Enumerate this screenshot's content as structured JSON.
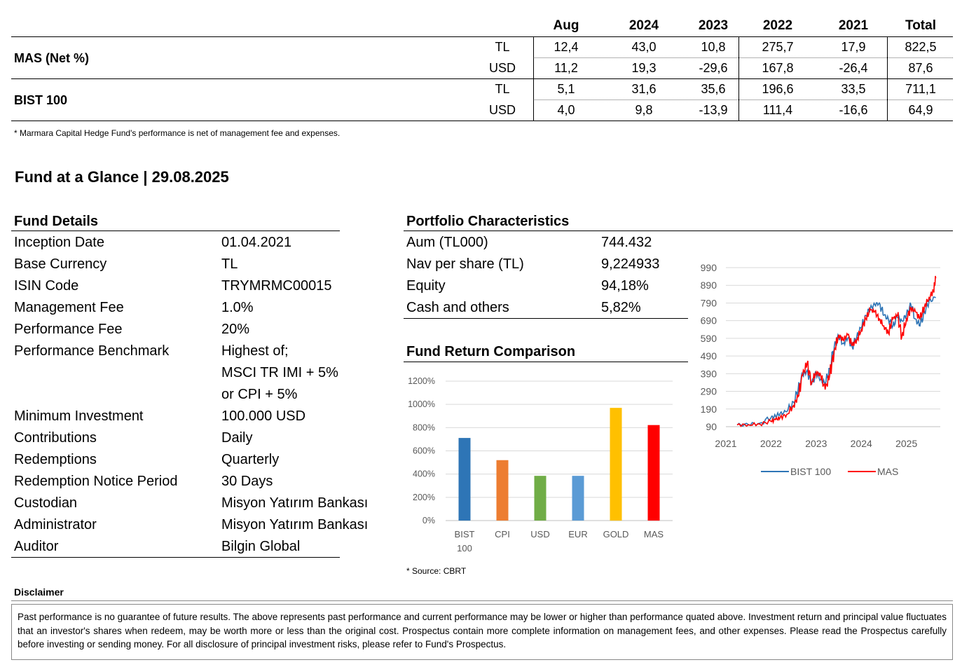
{
  "perf_table": {
    "headers": [
      "Aug",
      "2024",
      "2023",
      "2022",
      "2021",
      "Total"
    ],
    "rows": [
      {
        "name": "MAS (Net %)",
        "lines": [
          {
            "currency": "TL",
            "values": [
              "12,4",
              "43,0",
              "10,8",
              "275,7",
              "17,9",
              "822,5"
            ]
          },
          {
            "currency": "USD",
            "values": [
              "11,2",
              "19,3",
              "-29,6",
              "167,8",
              "-26,4",
              "87,6"
            ]
          }
        ]
      },
      {
        "name": "BIST 100",
        "lines": [
          {
            "currency": "TL",
            "values": [
              "5,1",
              "31,6",
              "35,6",
              "196,6",
              "33,5",
              "711,1"
            ]
          },
          {
            "currency": "USD",
            "values": [
              "4,0",
              "9,8",
              "-13,9",
              "111,4",
              "-16,6",
              "64,9"
            ]
          }
        ]
      }
    ],
    "footnote": "* Marmara Capital Hedge Fund's performance is net of management fee and expenses."
  },
  "glance_title": "Fund at a Glance |  29.08.2025",
  "fund_details": {
    "title": "Fund Details",
    "items": [
      {
        "label": "Inception Date",
        "value": "01.04.2021"
      },
      {
        "label": "Base Currency",
        "value": "TL"
      },
      {
        "label": "ISIN Code",
        "value": "TRYMRMC00015"
      },
      {
        "label": "Management Fee",
        "value": "1.0%"
      },
      {
        "label": "Performance Fee",
        "value": "20%"
      },
      {
        "label": "Performance Benchmark",
        "value": "Highest of;"
      },
      {
        "label": "",
        "value": "MSCI TR IMI + 5%"
      },
      {
        "label": "",
        "value": "or CPI + 5%"
      },
      {
        "label": "Minimum Investment",
        "value": "100.000 USD"
      },
      {
        "label": "Contributions",
        "value": "Daily"
      },
      {
        "label": "Redemptions",
        "value": "Quarterly"
      },
      {
        "label": "Redemption Notice Period",
        "value": "30 Days"
      },
      {
        "label": "Custodian",
        "value": "Misyon Yatırım Bankası"
      },
      {
        "label": "Administrator",
        "value": "Misyon Yatırım Bankası"
      },
      {
        "label": "Auditor",
        "value": "Bilgin Global"
      }
    ]
  },
  "portfolio": {
    "title": "Portfolio Characteristics",
    "items": [
      {
        "label": "Aum (TL000)",
        "value": "744.432"
      },
      {
        "label": "Nav per share (TL)",
        "value": "9,224933"
      },
      {
        "label": "Equity",
        "value": "94,18%"
      },
      {
        "label": "Cash and others",
        "value": "5,82%"
      }
    ]
  },
  "comparison": {
    "title": "Fund Return Comparison",
    "source": "* Source: CBRT"
  },
  "disclaimer": {
    "title": "Disclaimer",
    "text": "Past performance is no guarantee of future results. The above represents past performance and current performance may be lower or higher than performance quated above. Investment return and principal value fluctuates that an investor's shares when redeem, may be worth more or less than the original cost. Prospectus contain  more complete information on management fees, and other expenses. Please read the Prospectus carefully before investing or sending money. For all disclosure of principal investment risks, please refer to Fund's Prospectus."
  },
  "chart_data": [
    {
      "type": "bar",
      "categories": [
        "BIST 100",
        "CPI",
        "USD",
        "EUR",
        "GOLD",
        "MAS"
      ],
      "values": [
        711,
        520,
        385,
        385,
        970,
        822
      ],
      "colors": [
        "#2e75b6",
        "#ed7d31",
        "#70ad47",
        "#5b9bd5",
        "#ffc000",
        "#ff0000"
      ],
      "ytick_labels": [
        "0%",
        "200%",
        "400%",
        "600%",
        "800%",
        "1000%",
        "1200%"
      ],
      "ylim": [
        0,
        1200
      ],
      "grid": true
    },
    {
      "type": "line",
      "x_tick_labels": [
        "2021",
        "2022",
        "2023",
        "2024",
        "2025"
      ],
      "y_tick_labels": [
        "90",
        "190",
        "290",
        "390",
        "490",
        "590",
        "690",
        "790",
        "890",
        "990"
      ],
      "ylim": [
        90,
        990
      ],
      "grid": true,
      "legend": "bottom",
      "series": [
        {
          "name": "BIST 100",
          "color": "#2e75b6",
          "x": [
            2021.25,
            2021.5,
            2021.75,
            2022.0,
            2022.1,
            2022.2,
            2022.35,
            2022.5,
            2022.6,
            2022.7,
            2022.8,
            2022.9,
            2023.0,
            2023.1,
            2023.2,
            2023.3,
            2023.4,
            2023.5,
            2023.6,
            2023.7,
            2023.8,
            2023.9,
            2024.0,
            2024.1,
            2024.2,
            2024.3,
            2024.4,
            2024.5,
            2024.6,
            2024.7,
            2024.8,
            2024.9,
            2025.0,
            2025.1,
            2025.2,
            2025.3,
            2025.4,
            2025.5,
            2025.65
          ],
          "y": [
            100,
            102,
            110,
            140,
            150,
            165,
            175,
            230,
            300,
            380,
            410,
            330,
            390,
            360,
            330,
            420,
            540,
            600,
            560,
            590,
            540,
            600,
            650,
            720,
            760,
            780,
            790,
            720,
            700,
            660,
            710,
            690,
            720,
            780,
            700,
            660,
            740,
            800,
            820
          ]
        },
        {
          "name": "MAS",
          "color": "#ff0000",
          "x": [
            2021.25,
            2021.5,
            2021.75,
            2022.0,
            2022.1,
            2022.2,
            2022.35,
            2022.5,
            2022.6,
            2022.7,
            2022.8,
            2022.9,
            2023.0,
            2023.1,
            2023.2,
            2023.3,
            2023.4,
            2023.5,
            2023.6,
            2023.7,
            2023.8,
            2023.9,
            2024.0,
            2024.1,
            2024.2,
            2024.3,
            2024.4,
            2024.5,
            2024.6,
            2024.7,
            2024.8,
            2024.9,
            2025.0,
            2025.1,
            2025.2,
            2025.3,
            2025.4,
            2025.5,
            2025.6,
            2025.65
          ],
          "y": [
            100,
            101,
            105,
            120,
            130,
            140,
            160,
            210,
            260,
            380,
            450,
            340,
            400,
            380,
            300,
            380,
            520,
            610,
            580,
            610,
            550,
            580,
            640,
            700,
            750,
            740,
            700,
            660,
            620,
            700,
            720,
            600,
            700,
            760,
            740,
            700,
            770,
            820,
            860,
            930
          ]
        }
      ]
    }
  ]
}
